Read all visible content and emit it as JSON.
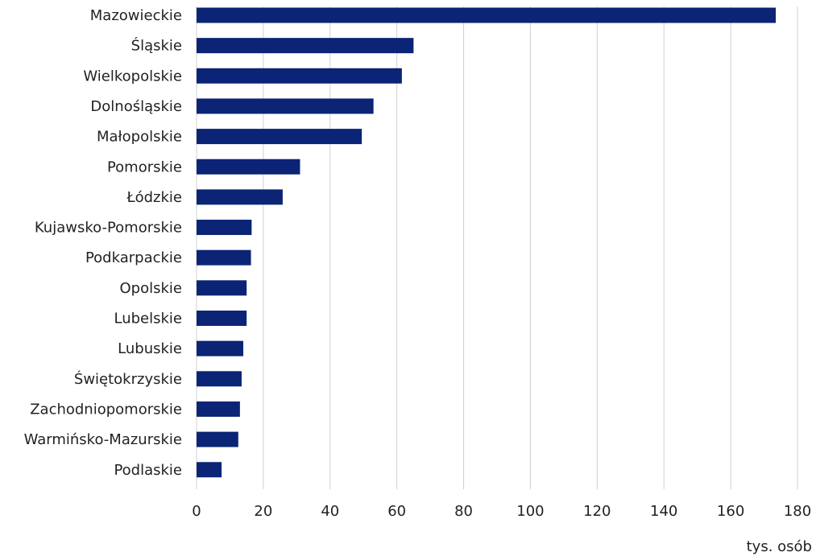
{
  "chart_data": {
    "type": "bar",
    "orientation": "horizontal",
    "categories": [
      "Mazowieckie",
      "Śląskie",
      "Wielkopolskie",
      "Dolnośląskie",
      "Małopolskie",
      "Pomorskie",
      "Łódzkie",
      "Kujawsko-Pomorskie",
      "Podkarpackie",
      "Opolskie",
      "Lubelskie",
      "Lubuskie",
      "Świętokrzyskie",
      "Zachodniopomorskie",
      "Warmińsko-Mazurskie",
      "Podlaskie"
    ],
    "values": [
      173.5,
      65.0,
      61.5,
      53.0,
      49.5,
      31.0,
      25.8,
      16.5,
      16.3,
      15.0,
      15.0,
      14.0,
      13.5,
      13.0,
      12.5,
      7.5
    ],
    "xlabel": "tys. osób",
    "xlim": [
      0,
      180
    ],
    "xticks": [
      0,
      20,
      40,
      60,
      80,
      100,
      120,
      140,
      160,
      180
    ],
    "grid": "vertical",
    "bar_color": "#0b2475",
    "grid_color": "#d0d0d0"
  }
}
